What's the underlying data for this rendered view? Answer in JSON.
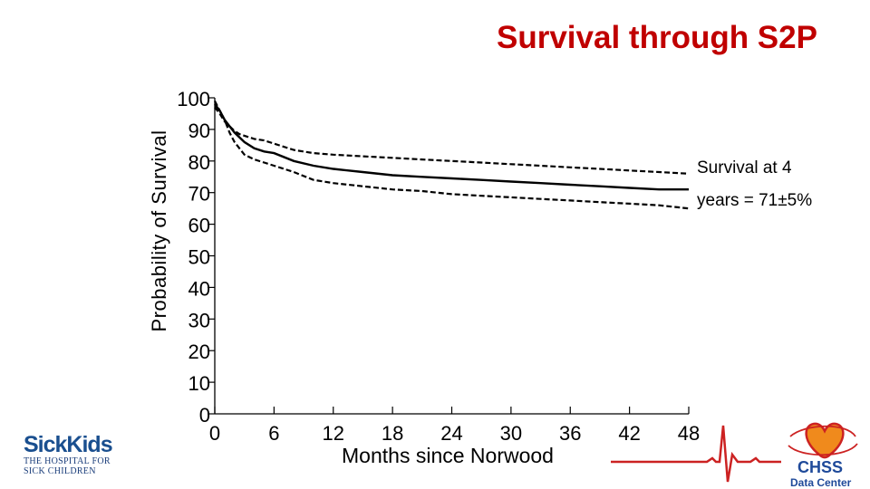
{
  "title": "Survival through S2P",
  "annotation": {
    "line1": "Survival at 4",
    "line2": "years = 71±5%"
  },
  "logos": {
    "sickkids_wordmark": "SickKids",
    "sickkids_subtitle_1": "THE HOSPITAL FOR",
    "sickkids_subtitle_2": "SICK CHILDREN",
    "chss_wordmark": "CHSS",
    "chss_subtitle": "Data Center"
  },
  "colors": {
    "title": "#c00000",
    "sickkids_blue": "#1a4f8f",
    "chss_red": "#cc2222",
    "chss_orange": "#f08a1c",
    "chss_blue": "#1f4a9a"
  },
  "chart_data": {
    "type": "line",
    "title": "Survival through S2P",
    "xlabel": "Months since Norwood",
    "ylabel": "Probability of Survival",
    "xlim": [
      0,
      48
    ],
    "ylim": [
      0,
      100
    ],
    "xticks": [
      0,
      6,
      12,
      18,
      24,
      30,
      36,
      42,
      48
    ],
    "yticks": [
      0,
      10,
      20,
      30,
      40,
      50,
      60,
      70,
      80,
      90,
      100
    ],
    "grid": false,
    "series": [
      {
        "style": "solid",
        "x": [
          0,
          0.5,
          1,
          1.5,
          2,
          2.5,
          3,
          4,
          5,
          6,
          8,
          10,
          12,
          15,
          18,
          21,
          24,
          27,
          30,
          33,
          36,
          39,
          42,
          45,
          48
        ],
        "y": [
          98,
          96,
          93,
          91,
          89,
          87.5,
          86,
          84,
          83,
          82.5,
          80,
          78.5,
          77.5,
          76.5,
          75.5,
          75,
          74.5,
          74,
          73.5,
          73,
          72.5,
          72,
          71.5,
          71,
          71
        ]
      },
      {
        "style": "dashed",
        "x": [
          0,
          0.5,
          1,
          1.5,
          2,
          2.5,
          3,
          4,
          5,
          6,
          8,
          10,
          12,
          15,
          18,
          21,
          24,
          27,
          30,
          33,
          36,
          39,
          42,
          45,
          48
        ],
        "y": [
          97,
          95,
          92.5,
          91,
          89.5,
          88.5,
          88,
          87,
          86.5,
          85.5,
          83.5,
          82.5,
          82,
          81.5,
          81,
          80.5,
          80,
          79.5,
          79,
          78.5,
          78,
          77.5,
          77,
          76.5,
          76
        ]
      },
      {
        "style": "dashed",
        "x": [
          0,
          0.5,
          1,
          1.5,
          2,
          2.5,
          3,
          4,
          5,
          6,
          8,
          10,
          12,
          15,
          18,
          21,
          24,
          27,
          30,
          33,
          36,
          39,
          42,
          45,
          48
        ],
        "y": [
          99,
          96,
          93,
          89,
          86,
          84,
          82,
          80.5,
          79.5,
          78.5,
          76.5,
          74,
          73,
          72,
          71,
          70.5,
          69.5,
          69,
          68.5,
          68,
          67.5,
          67,
          66.5,
          66,
          65
        ]
      }
    ]
  }
}
